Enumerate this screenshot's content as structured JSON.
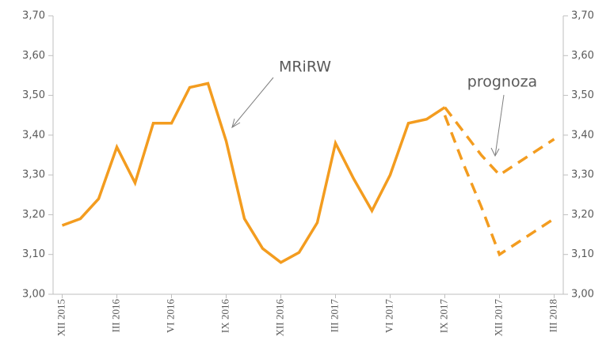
{
  "chart_data": {
    "type": "line",
    "categories": [
      "XII 2015",
      null,
      null,
      "III 2016",
      null,
      null,
      "VI 2016",
      null,
      null,
      "IX 2016",
      null,
      null,
      "XII 2016",
      null,
      null,
      "III 2017",
      null,
      null,
      "VI 2017",
      null,
      null,
      "IX 2017",
      null,
      null,
      "XII 2017",
      null,
      null,
      "III 2018"
    ],
    "series": [
      {
        "color": "#f39c1f",
        "dashed": false,
        "values": [
          3.173,
          3.19,
          3.24,
          3.37,
          3.28,
          3.43,
          3.43,
          3.52,
          3.53,
          3.385,
          3.19,
          3.115,
          3.08,
          3.105,
          3.18,
          3.38,
          3.29,
          3.21,
          3.3,
          3.43,
          3.44,
          3.47,
          null,
          null,
          null,
          null,
          null,
          null
        ]
      },
      {
        "color": "#f39c1f",
        "dashed": true,
        "values": [
          null,
          null,
          null,
          null,
          null,
          null,
          null,
          null,
          null,
          null,
          null,
          null,
          null,
          null,
          null,
          null,
          null,
          null,
          null,
          null,
          null,
          3.47,
          3.41,
          3.35,
          3.3,
          3.33,
          3.36,
          3.39
        ]
      },
      {
        "color": "#f39c1f",
        "dashed": true,
        "values": [
          null,
          null,
          null,
          null,
          null,
          null,
          null,
          null,
          null,
          null,
          null,
          null,
          null,
          null,
          null,
          null,
          null,
          null,
          null,
          null,
          null,
          3.45,
          3.33,
          3.22,
          3.1,
          3.13,
          3.16,
          3.19
        ]
      }
    ],
    "ylim": [
      3.0,
      3.7
    ],
    "yticks": [
      {
        "value": 3.0,
        "label": "3,00"
      },
      {
        "value": 3.1,
        "label": "3,10"
      },
      {
        "value": 3.2,
        "label": "3,20"
      },
      {
        "value": 3.3,
        "label": "3,30"
      },
      {
        "value": 3.4,
        "label": "3,40"
      },
      {
        "value": 3.5,
        "label": "3,50"
      },
      {
        "value": 3.6,
        "label": "3,60"
      },
      {
        "value": 3.7,
        "label": "3,70"
      }
    ],
    "y2lim": [
      3.0,
      3.7
    ],
    "y2ticks": [
      {
        "value": 3.0,
        "label": "3,00"
      },
      {
        "value": 3.1,
        "label": "3,10"
      },
      {
        "value": 3.2,
        "label": "3,20"
      },
      {
        "value": 3.3,
        "label": "3,30"
      },
      {
        "value": 3.4,
        "label": "3,40"
      },
      {
        "value": 3.5,
        "label": "3,50"
      },
      {
        "value": 3.6,
        "label": "3,60"
      },
      {
        "value": 3.7,
        "label": "3,70"
      }
    ],
    "annotations": [
      "MRiRW",
      "prognoza"
    ]
  }
}
